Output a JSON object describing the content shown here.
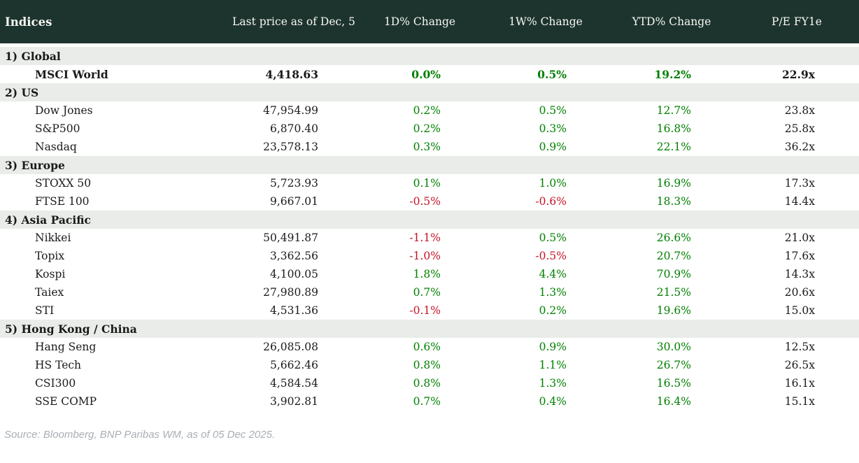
{
  "table": {
    "columns": [
      {
        "key": "name",
        "label": "Indices"
      },
      {
        "key": "price",
        "label": "Last price as of Dec, 5"
      },
      {
        "key": "d1",
        "label": "1D% Change"
      },
      {
        "key": "w1",
        "label": "1W% Change"
      },
      {
        "key": "ytd",
        "label": "YTD% Change"
      },
      {
        "key": "pe",
        "label": "P/E FY1e"
      }
    ],
    "sections": [
      {
        "label": "1) Global",
        "rows": [
          {
            "name": "MSCI World",
            "price": "4,418.63",
            "d1": "0.0%",
            "w1": "0.5%",
            "ytd": "19.2%",
            "pe": "22.9x",
            "bold": true
          }
        ]
      },
      {
        "label": "2) US",
        "rows": [
          {
            "name": "Dow Jones",
            "price": "47,954.99",
            "d1": "0.2%",
            "w1": "0.5%",
            "ytd": "12.7%",
            "pe": "23.8x",
            "bold": false
          },
          {
            "name": "S&P500",
            "price": "6,870.40",
            "d1": "0.2%",
            "w1": "0.3%",
            "ytd": "16.8%",
            "pe": "25.8x",
            "bold": false
          },
          {
            "name": "Nasdaq",
            "price": "23,578.13",
            "d1": "0.3%",
            "w1": "0.9%",
            "ytd": "22.1%",
            "pe": "36.2x",
            "bold": false
          }
        ]
      },
      {
        "label": "3) Europe",
        "rows": [
          {
            "name": "STOXX 50",
            "price": "5,723.93",
            "d1": "0.1%",
            "w1": "1.0%",
            "ytd": "16.9%",
            "pe": "17.3x",
            "bold": false
          },
          {
            "name": "FTSE 100",
            "price": "9,667.01",
            "d1": "-0.5%",
            "w1": "-0.6%",
            "ytd": "18.3%",
            "pe": "14.4x",
            "bold": false
          }
        ]
      },
      {
        "label": "4) Asia Pacific",
        "rows": [
          {
            "name": "Nikkei",
            "price": "50,491.87",
            "d1": "-1.1%",
            "w1": "0.5%",
            "ytd": "26.6%",
            "pe": "21.0x",
            "bold": false
          },
          {
            "name": "Topix",
            "price": "3,362.56",
            "d1": "-1.0%",
            "w1": "-0.5%",
            "ytd": "20.7%",
            "pe": "17.6x",
            "bold": false
          },
          {
            "name": "Kospi",
            "price": "4,100.05",
            "d1": "1.8%",
            "w1": "4.4%",
            "ytd": "70.9%",
            "pe": "14.3x",
            "bold": false
          },
          {
            "name": "Taiex",
            "price": "27,980.89",
            "d1": "0.7%",
            "w1": "1.3%",
            "ytd": "21.5%",
            "pe": "20.6x",
            "bold": false
          },
          {
            "name": "STI",
            "price": "4,531.36",
            "d1": "-0.1%",
            "w1": "0.2%",
            "ytd": "19.6%",
            "pe": "15.0x",
            "bold": false
          }
        ]
      },
      {
        "label": "5) Hong Kong / China",
        "rows": [
          {
            "name": "Hang Seng",
            "price": "26,085.08",
            "d1": "0.6%",
            "w1": "0.9%",
            "ytd": "30.0%",
            "pe": "12.5x",
            "bold": false
          },
          {
            "name": "HS Tech",
            "price": "5,662.46",
            "d1": "0.8%",
            "w1": "1.1%",
            "ytd": "26.7%",
            "pe": "26.5x",
            "bold": false
          },
          {
            "name": "CSI300",
            "price": "4,584.54",
            "d1": "0.8%",
            "w1": "1.3%",
            "ytd": "16.5%",
            "pe": "16.1x",
            "bold": false
          },
          {
            "name": "SSE COMP",
            "price": "3,902.81",
            "d1": "0.7%",
            "w1": "0.4%",
            "ytd": "16.4%",
            "pe": "15.1x",
            "bold": false
          }
        ]
      }
    ]
  },
  "footer": {
    "source": "Source: Bloomberg, BNP Paribas WM, as of 05 Dec 2025."
  },
  "colors": {
    "header_bg": "#1d342e",
    "header_text": "#f7f7f2",
    "section_bg": "#e9ece8",
    "positive": "#008000",
    "negative": "#c41425",
    "text": "#1a1a1a",
    "source_text": "#a9afb5"
  }
}
